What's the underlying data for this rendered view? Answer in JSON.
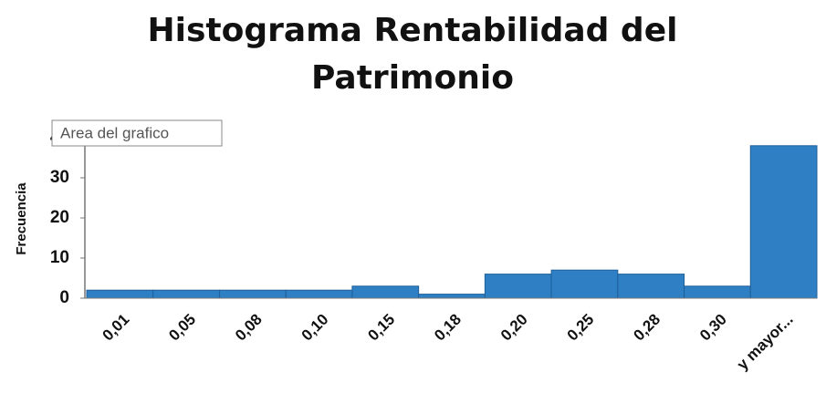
{
  "chart_data": {
    "type": "bar",
    "title": "Histograma Rentabilidad del Patrimonio",
    "y_label": "Frecuencia",
    "annotation": "Area del grafico",
    "categories": [
      "0,01",
      "0,05",
      "0,08",
      "0,10",
      "0,15",
      "0,18",
      "0,20",
      "0,25",
      "0,28",
      "0,30",
      "y mayor..."
    ],
    "values": [
      2,
      2,
      2,
      2,
      3,
      1,
      6,
      7,
      6,
      3,
      38
    ],
    "color": "#2e7fc4",
    "ylim": [
      0,
      40
    ],
    "yticks": [
      0,
      10,
      20,
      30,
      40
    ],
    "grid": false
  }
}
